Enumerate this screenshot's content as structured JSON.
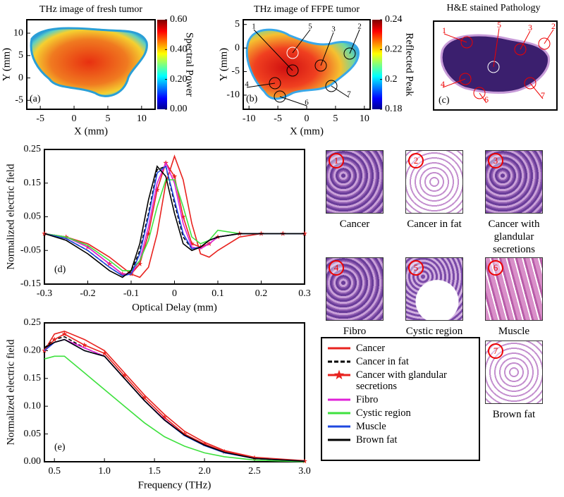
{
  "chart_data": [
    {
      "type": "heatmap",
      "title": "THz image of fresh tumor",
      "panel_label": "(a)",
      "xlabel": "X (mm)",
      "ylabel": "Y (mm)",
      "colorbar_label": "Spectral Power",
      "xlim": [
        -7,
        12
      ],
      "ylim": [
        -7,
        13
      ],
      "xticks": [
        -5,
        0,
        5,
        10
      ],
      "yticks": [
        -5,
        0,
        5,
        10
      ],
      "clim": [
        0,
        0.6
      ],
      "cticks": [
        {
          "value": 0,
          "label": "0.00"
        },
        {
          "value": 0.2,
          "label": "0.20"
        },
        {
          "value": 0.4,
          "label": "0.40"
        },
        {
          "value": 0.6,
          "label": "0.60"
        }
      ]
    },
    {
      "type": "heatmap",
      "title": "THz image of FFPE tumor",
      "panel_label": "(b)",
      "xlabel": "X (mm)",
      "ylabel": "Y (mm)",
      "colorbar_label": "Reflected Peak",
      "xlim": [
        -11,
        11
      ],
      "ylim": [
        -13,
        6
      ],
      "xticks": [
        -10,
        -5,
        0,
        5,
        10
      ],
      "yticks": [
        -10,
        -5,
        0,
        5
      ],
      "clim": [
        0.18,
        0.24
      ],
      "cticks": [
        0.18,
        0.2,
        0.22,
        0.24
      ],
      "markers": [
        "1",
        "2",
        "3",
        "4",
        "5",
        "6",
        "7"
      ]
    },
    {
      "type": "line",
      "panel_label": "(d)",
      "xlabel": "Optical Delay (mm)",
      "ylabel": "Normalized electric field",
      "xlim": [
        -0.3,
        0.3
      ],
      "ylim": [
        -0.15,
        0.25
      ],
      "xticks": [
        -0.3,
        -0.2,
        -0.1,
        0,
        0.1,
        0.2,
        0.3
      ],
      "yticks": [
        -0.15,
        -0.05,
        0.05,
        0.15,
        0.25
      ],
      "x": [
        -0.3,
        -0.25,
        -0.2,
        -0.15,
        -0.12,
        -0.1,
        -0.08,
        -0.06,
        -0.04,
        -0.02,
        0,
        0.02,
        0.04,
        0.06,
        0.08,
        0.1,
        0.15,
        0.2,
        0.25,
        0.3
      ],
      "series": [
        {
          "color": "#e8231f",
          "style": "solid",
          "values": [
            0,
            -0.01,
            -0.03,
            -0.07,
            -0.1,
            -0.12,
            -0.13,
            -0.1,
            0,
            0.15,
            0.23,
            0.16,
            0.03,
            -0.06,
            -0.07,
            -0.05,
            -0.01,
            0,
            0,
            0
          ]
        },
        {
          "color": "#000000",
          "style": "dashed",
          "values": [
            0,
            -0.015,
            -0.05,
            -0.1,
            -0.125,
            -0.115,
            -0.05,
            0.06,
            0.19,
            0.2,
            0.09,
            -0.01,
            -0.045,
            -0.04,
            -0.02,
            -0.01,
            0,
            0,
            0,
            0
          ]
        },
        {
          "color": "#e8231f",
          "style": "solid",
          "marker": "star",
          "values": [
            0,
            -0.01,
            -0.04,
            -0.09,
            -0.12,
            -0.12,
            -0.09,
            0,
            0.13,
            0.21,
            0.17,
            0.05,
            -0.03,
            -0.04,
            -0.03,
            -0.01,
            0,
            0,
            0,
            0
          ]
        },
        {
          "color": "#e021d8",
          "style": "solid",
          "values": [
            0,
            -0.01,
            -0.04,
            -0.09,
            -0.12,
            -0.12,
            -0.08,
            0.02,
            0.15,
            0.21,
            0.15,
            0.03,
            -0.04,
            -0.045,
            -0.03,
            -0.01,
            0,
            0,
            0,
            0
          ]
        },
        {
          "color": "#3ee13e",
          "style": "solid",
          "values": [
            0,
            -0.01,
            -0.035,
            -0.08,
            -0.11,
            -0.11,
            -0.08,
            -0.02,
            0.08,
            0.16,
            0.16,
            0.08,
            -0.01,
            -0.03,
            -0.02,
            0.01,
            0,
            0,
            0,
            0
          ]
        },
        {
          "color": "#1f48e0",
          "style": "solid",
          "values": [
            0,
            -0.015,
            -0.05,
            -0.1,
            -0.125,
            -0.12,
            -0.06,
            0.05,
            0.18,
            0.2,
            0.1,
            0,
            -0.045,
            -0.04,
            -0.02,
            -0.01,
            0,
            0,
            0,
            0
          ]
        },
        {
          "color": "#000000",
          "style": "solid",
          "values": [
            0,
            -0.02,
            -0.06,
            -0.11,
            -0.13,
            -0.11,
            -0.03,
            0.1,
            0.2,
            0.17,
            0.06,
            -0.03,
            -0.05,
            -0.04,
            -0.02,
            -0.01,
            0,
            0,
            0,
            0
          ]
        }
      ]
    },
    {
      "type": "line",
      "panel_label": "(e)",
      "xlabel": "Frequency (THz)",
      "ylabel": "Normalized electric field",
      "xlim": [
        0.4,
        3.0
      ],
      "ylim": [
        0,
        0.25
      ],
      "xticks": [
        0.5,
        {
          "value": 1,
          "label": "1.0"
        },
        1.5,
        {
          "value": 2,
          "label": "2.0"
        },
        2.5,
        {
          "value": 3,
          "label": "3.0"
        }
      ],
      "yticks": [
        {
          "value": 0,
          "label": "0.00"
        },
        0.05,
        {
          "value": 0.1,
          "label": "0.10"
        },
        0.15,
        {
          "value": 0.2,
          "label": "0.20"
        },
        0.25
      ],
      "x": [
        0.4,
        0.5,
        0.6,
        0.8,
        1.0,
        1.2,
        1.4,
        1.6,
        1.8,
        2.0,
        2.2,
        2.5,
        3.0
      ],
      "series": [
        {
          "name": "Cancer",
          "color": "#e8231f",
          "style": "solid",
          "values": [
            0.2,
            0.23,
            0.235,
            0.22,
            0.2,
            0.16,
            0.12,
            0.085,
            0.055,
            0.035,
            0.02,
            0.008,
            0.002
          ]
        },
        {
          "name": "Cancer in fat",
          "color": "#000000",
          "style": "dashed",
          "values": [
            0.205,
            0.22,
            0.225,
            0.205,
            0.19,
            0.15,
            0.11,
            0.076,
            0.048,
            0.03,
            0.017,
            0.006,
            0.001
          ]
        },
        {
          "name": "Cancer with glandular secretions",
          "color": "#e8231f",
          "style": "solid",
          "marker": "star",
          "values": [
            0.2,
            0.22,
            0.23,
            0.21,
            0.195,
            0.155,
            0.115,
            0.08,
            0.05,
            0.032,
            0.018,
            0.007,
            0.001
          ]
        },
        {
          "name": "Fibro",
          "color": "#e021d8",
          "style": "solid",
          "values": [
            0.2,
            0.215,
            0.22,
            0.205,
            0.19,
            0.15,
            0.11,
            0.076,
            0.048,
            0.03,
            0.017,
            0.006,
            0.001
          ]
        },
        {
          "name": "Cystic region",
          "color": "#3ee13e",
          "style": "solid",
          "values": [
            0.185,
            0.19,
            0.19,
            0.16,
            0.13,
            0.1,
            0.07,
            0.045,
            0.028,
            0.016,
            0.009,
            0.003,
            0
          ]
        },
        {
          "name": "Muscle",
          "color": "#1f48e0",
          "style": "solid",
          "values": [
            0.2,
            0.215,
            0.22,
            0.2,
            0.19,
            0.15,
            0.11,
            0.075,
            0.047,
            0.029,
            0.016,
            0.006,
            0.001
          ]
        },
        {
          "name": "Brown fat",
          "color": "#000000",
          "style": "solid",
          "values": [
            0.205,
            0.215,
            0.22,
            0.2,
            0.19,
            0.15,
            0.11,
            0.075,
            0.048,
            0.03,
            0.017,
            0.006,
            0.001
          ]
        }
      ]
    }
  ],
  "pathology": {
    "title": "H&E stained Pathology",
    "panel_label": "(c)",
    "markers": [
      "1",
      "2",
      "3",
      "4",
      "5",
      "6",
      "7"
    ]
  },
  "histology": [
    {
      "number": "1",
      "label": "Cancer"
    },
    {
      "number": "2",
      "label": "Cancer in fat"
    },
    {
      "number": "3",
      "label": "Cancer with glandular secretions"
    },
    {
      "number": "4",
      "label": "Fibro"
    },
    {
      "number": "5",
      "label": "Cystic region"
    },
    {
      "number": "6",
      "label": "Muscle"
    },
    {
      "number": "7",
      "label": "Brown fat"
    }
  ]
}
